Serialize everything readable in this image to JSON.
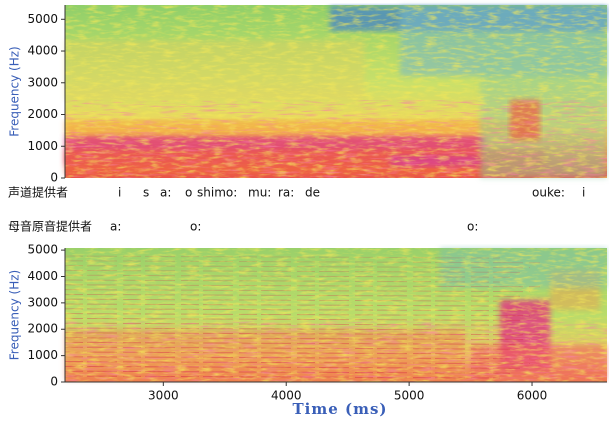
{
  "chart_data": [
    {
      "type": "spectrogram",
      "ylabel": "Frequency (Hz)",
      "xlim": [
        2200,
        6610
      ],
      "ylim": [
        0,
        5450
      ],
      "yticks": [
        0,
        1000,
        2000,
        3000,
        4000,
        5000
      ]
    },
    {
      "type": "spectrogram",
      "ylabel": "Frequency (Hz)",
      "xlabel": "Time (ms)",
      "xlim": [
        2200,
        6610
      ],
      "ylim": [
        0,
        5080
      ],
      "yticks": [
        0,
        1000,
        2000,
        3000,
        4000,
        5000
      ],
      "xticks": [
        3000,
        4000,
        5000,
        6000
      ]
    }
  ],
  "transcription": {
    "rows": [
      {
        "label": "声道提供者",
        "tokens": [
          "i",
          "s",
          "a:",
          "o",
          "shimo:",
          "mu:",
          "ra:",
          "de",
          "ouke:",
          "i"
        ]
      },
      {
        "label": "母音原音提供者",
        "tokens": [
          "a:",
          "o:",
          "o:"
        ]
      }
    ]
  }
}
